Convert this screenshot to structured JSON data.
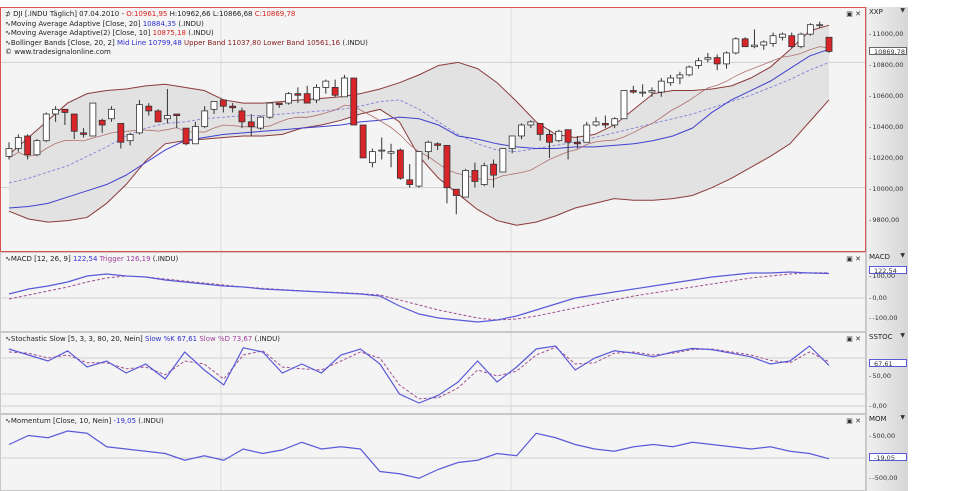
{
  "main": {
    "legend": {
      "symbol_line": {
        "prefix": "DJI [.INDU Täglich] 07.04.2010 - ",
        "open": "O:10961,95",
        "high": " H:10962,66",
        "low": " L:10866,68",
        "close": " C:10869,78"
      },
      "ma20": {
        "label": "Moving Average Adaptive [Close, 20] ",
        "value": "10884,35",
        "suffix": " (.INDU)"
      },
      "ma10": {
        "label": "Moving Average Adaptive(2) [Close, 10] ",
        "value": "10875,18",
        "suffix": " (.INDU)"
      },
      "bb": {
        "label": "Bollinger Bands [Close, 20, 2] ",
        "mid_label": "Mid Line 10799,48",
        "upper_label": " Upper Band 11037,80",
        "lower_label": " Lower Band 10561,16",
        "suffix": " (.INDU)"
      },
      "copyright": "© www.tradesignalonline.com"
    },
    "scale": {
      "title": "XXP",
      "ticks": [
        "11000,00",
        "10800,00",
        "10600,00",
        "10400,00",
        "10200,00",
        "10000,00",
        "9800,00"
      ],
      "last_price": "10869,78"
    }
  },
  "macd": {
    "legend": {
      "label": "MACD [12, 26, 9] ",
      "value": "122,54",
      "trigger": " Trigger 126,19",
      "suffix": " (.INDU)"
    },
    "scale": {
      "title": "MACD",
      "ticks": [
        "100,00",
        "0,00",
        "-100,00"
      ],
      "last_value": "122,54"
    }
  },
  "stoch": {
    "legend": {
      "label": "Stochastic Slow [5, 3, 3, 80, 20, Nein] ",
      "k": "Slow %K 67,61",
      "d": " Slow %D 73,67",
      "suffix": " (.INDU)"
    },
    "scale": {
      "title": "SSTOC",
      "ticks": [
        "50,00",
        "0,00"
      ],
      "last_value": "67,61"
    }
  },
  "mom": {
    "legend": {
      "label": "Momentum [Close, 10, Nein] ",
      "value": "-19,05",
      "suffix": " (.INDU)"
    },
    "scale": {
      "title": "MOM",
      "ticks": [
        "500,00",
        "-500,00"
      ],
      "last_value": "-19,05"
    }
  },
  "colors": {
    "up": "#ffffff",
    "down": "#d9252a",
    "band": "#8b3a3a",
    "ma20": "#4040d0",
    "ma10": "#8080e0",
    "macd": "#5a5ad8",
    "trigger": "#a05090",
    "frame_active": "#d9534f"
  },
  "chart_data": [
    {
      "type": "candlestick",
      "title": "DJI [.INDU Täglich] 07.04.2010",
      "ylabel": "XXP",
      "ylim": [
        9750,
        11080
      ],
      "yticks": [
        9800,
        10000,
        10200,
        10400,
        10600,
        10800,
        11000
      ],
      "ohlc": [
        [
          10200,
          10290,
          10180,
          10250
        ],
        [
          10250,
          10340,
          10230,
          10320
        ],
        [
          10330,
          10340,
          10180,
          10210
        ],
        [
          10210,
          10310,
          10200,
          10300
        ],
        [
          10300,
          10480,
          10290,
          10470
        ],
        [
          10470,
          10520,
          10420,
          10500
        ],
        [
          10500,
          10500,
          10400,
          10480
        ],
        [
          10470,
          10470,
          10310,
          10360
        ],
        [
          10350,
          10380,
          10320,
          10340
        ],
        [
          10330,
          10500,
          10330,
          10540
        ],
        [
          10430,
          10440,
          10350,
          10400
        ],
        [
          10440,
          10520,
          10420,
          10500
        ],
        [
          10410,
          10410,
          10250,
          10290
        ],
        [
          10300,
          10350,
          10270,
          10340
        ],
        [
          10350,
          10560,
          10340,
          10530
        ],
        [
          10520,
          10540,
          10460,
          10490
        ],
        [
          10490,
          10500,
          10430,
          10420
        ],
        [
          10440,
          10630,
          10410,
          10460
        ],
        [
          10470,
          10470,
          10380,
          10460
        ],
        [
          10380,
          10380,
          10270,
          10280
        ],
        [
          10280,
          10420,
          10280,
          10390
        ],
        [
          10390,
          10520,
          10380,
          10490
        ],
        [
          10500,
          10540,
          10470,
          10550
        ],
        [
          10560,
          10560,
          10480,
          10520
        ],
        [
          10520,
          10540,
          10480,
          10510
        ],
        [
          10490,
          10510,
          10380,
          10420
        ],
        [
          10420,
          10470,
          10330,
          10390
        ],
        [
          10380,
          10460,
          10370,
          10450
        ],
        [
          10450,
          10530,
          10440,
          10540
        ],
        [
          10540,
          10540,
          10510,
          10530
        ],
        [
          10540,
          10610,
          10530,
          10600
        ],
        [
          10600,
          10640,
          10540,
          10590
        ],
        [
          10600,
          10650,
          10570,
          10540
        ],
        [
          10560,
          10660,
          10540,
          10640
        ],
        [
          10640,
          10690,
          10600,
          10680
        ],
        [
          10640,
          10690,
          10580,
          10590
        ],
        [
          10580,
          10720,
          10580,
          10700
        ],
        [
          10700,
          10700,
          10420,
          10400
        ],
        [
          10400,
          10400,
          10200,
          10190
        ],
        [
          10160,
          10250,
          10130,
          10230
        ],
        [
          10240,
          10320,
          10180,
          10240
        ],
        [
          10220,
          10280,
          10130,
          10230
        ],
        [
          10240,
          10250,
          10050,
          10060
        ],
        [
          10050,
          10150,
          10000,
          10020
        ],
        [
          10010,
          10230,
          10000,
          10230
        ],
        [
          10230,
          10300,
          10180,
          10290
        ],
        [
          10280,
          10290,
          10240,
          10270
        ],
        [
          10270,
          10270,
          9900,
          10000
        ],
        [
          9990,
          9990,
          9830,
          9950
        ],
        [
          9940,
          10120,
          9950,
          10110
        ],
        [
          10110,
          10160,
          10000,
          10040
        ],
        [
          10020,
          10160,
          10010,
          10140
        ],
        [
          10150,
          10180,
          10000,
          10080
        ],
        [
          10100,
          10250,
          10100,
          10250
        ],
        [
          10250,
          10320,
          10220,
          10330
        ],
        [
          10330,
          10410,
          10310,
          10400
        ],
        [
          10400,
          10430,
          10380,
          10420
        ],
        [
          10410,
          10410,
          10300,
          10340
        ],
        [
          10340,
          10370,
          10190,
          10290
        ],
        [
          10300,
          10370,
          10290,
          10360
        ],
        [
          10370,
          10370,
          10180,
          10290
        ],
        [
          10290,
          10330,
          10250,
          10280
        ],
        [
          10290,
          10420,
          10290,
          10400
        ],
        [
          10400,
          10450,
          10390,
          10420
        ],
        [
          10410,
          10460,
          10380,
          10400
        ],
        [
          10400,
          10450,
          10380,
          10440
        ],
        [
          10440,
          10620,
          10440,
          10620
        ],
        [
          10620,
          10650,
          10600,
          10610
        ],
        [
          10610,
          10660,
          10580,
          10610
        ],
        [
          10610,
          10640,
          10580,
          10620
        ],
        [
          10610,
          10700,
          10580,
          10680
        ],
        [
          10670,
          10720,
          10650,
          10700
        ],
        [
          10700,
          10740,
          10660,
          10720
        ],
        [
          10720,
          10780,
          10710,
          10770
        ],
        [
          10780,
          10830,
          10760,
          10810
        ],
        [
          10820,
          10860,
          10800,
          10830
        ],
        [
          10830,
          10850,
          10750,
          10790
        ],
        [
          10790,
          10870,
          10760,
          10860
        ],
        [
          10860,
          10960,
          10850,
          10950
        ],
        [
          10950,
          10960,
          10900,
          10900
        ],
        [
          10900,
          11010,
          10890,
          10910
        ],
        [
          10910,
          10940,
          10880,
          10930
        ],
        [
          10920,
          10990,
          10900,
          10970
        ],
        [
          10960,
          10990,
          10940,
          10980
        ],
        [
          10970,
          10990,
          10890,
          10900
        ],
        [
          10900,
          10990,
          10890,
          10980
        ],
        [
          10980,
          11050,
          10970,
          11040
        ],
        [
          11040,
          11060,
          11020,
          11040
        ],
        [
          10960,
          10960,
          10860,
          10870
        ]
      ],
      "series": [
        {
          "name": "Bollinger Upper",
          "values": [
            10210,
            10320,
            10430,
            10540,
            10600,
            10620,
            10630,
            10650,
            10660,
            10640,
            10620,
            10560,
            10540,
            10540,
            10550,
            10560,
            10570,
            10580,
            10600,
            10630,
            10670,
            10720,
            10780,
            10800,
            10760,
            10670,
            10550,
            10420,
            10340,
            10320,
            10340,
            10400,
            10500,
            10600,
            10620,
            10620,
            10630,
            10650,
            10700,
            10770,
            10880,
            11000,
            11037
          ]
        },
        {
          "name": "Bollinger Lower",
          "values": [
            9850,
            9800,
            9780,
            9790,
            9810,
            9900,
            10020,
            10170,
            10280,
            10300,
            10310,
            10320,
            10330,
            10330,
            10340,
            10380,
            10400,
            10430,
            10470,
            10500,
            10420,
            10200,
            10060,
            9960,
            9860,
            9790,
            9760,
            9780,
            9820,
            9870,
            9900,
            9930,
            9920,
            9920,
            9930,
            9950,
            10000,
            10060,
            10130,
            10200,
            10280,
            10420,
            10561
          ]
        },
        {
          "name": "Bollinger Mid",
          "values": [
            10030,
            10060,
            10100,
            10140,
            10200,
            10260,
            10330,
            10380,
            10410,
            10420,
            10440,
            10450,
            10460,
            10460,
            10470,
            10480,
            10490,
            10500,
            10520,
            10550,
            10560,
            10500,
            10420,
            10340,
            10280,
            10240,
            10230,
            10250,
            10270,
            10290,
            10320,
            10350,
            10380,
            10410,
            10440,
            10470,
            10510,
            10550,
            10590,
            10640,
            10690,
            10750,
            10799
          ]
        },
        {
          "name": "MA Adaptive 20",
          "values": [
            9870,
            9880,
            9900,
            9940,
            9980,
            10020,
            10080,
            10160,
            10240,
            10300,
            10320,
            10340,
            10350,
            10360,
            10370,
            10380,
            10390,
            10400,
            10420,
            10430,
            10450,
            10440,
            10400,
            10330,
            10310,
            10280,
            10260,
            10250,
            10250,
            10260,
            10260,
            10270,
            10280,
            10300,
            10330,
            10380,
            10480,
            10560,
            10620,
            10680,
            10760,
            10840,
            10884
          ]
        }
      ]
    },
    {
      "type": "line",
      "title": "MACD [12, 26, 9]",
      "ylim": [
        -140,
        170
      ],
      "yticks": [
        100,
        0,
        -100
      ],
      "series": [
        {
          "name": "MACD",
          "values": [
            20,
            45,
            60,
            80,
            110,
            120,
            110,
            105,
            90,
            80,
            70,
            60,
            55,
            45,
            40,
            35,
            30,
            25,
            20,
            10,
            -40,
            -80,
            -100,
            -110,
            -120,
            -110,
            -90,
            -60,
            -30,
            0,
            15,
            30,
            45,
            60,
            75,
            90,
            105,
            115,
            125,
            125,
            130,
            125,
            122.54
          ]
        },
        {
          "name": "Trigger",
          "values": [
            -5,
            15,
            35,
            55,
            80,
            100,
            110,
            105,
            95,
            85,
            75,
            65,
            55,
            48,
            42,
            36,
            30,
            27,
            22,
            15,
            -10,
            -35,
            -60,
            -80,
            -100,
            -110,
            -105,
            -90,
            -70,
            -50,
            -30,
            -10,
            10,
            25,
            40,
            55,
            70,
            85,
            100,
            110,
            120,
            126,
            126.19
          ]
        }
      ]
    },
    {
      "type": "line",
      "title": "Stochastic Slow [5, 3, 3, 80, 20, Nein]",
      "ylim": [
        -10,
        110
      ],
      "yticks": [
        50,
        0
      ],
      "series": [
        {
          "name": "Slow %K",
          "values": [
            95,
            85,
            75,
            92,
            65,
            75,
            55,
            70,
            45,
            90,
            60,
            35,
            97,
            90,
            55,
            70,
            55,
            85,
            95,
            70,
            20,
            5,
            18,
            40,
            75,
            40,
            65,
            95,
            100,
            60,
            80,
            92,
            88,
            82,
            90,
            96,
            94,
            88,
            82,
            70,
            75,
            100,
            67.61
          ]
        },
        {
          "name": "Slow %D",
          "values": [
            90,
            88,
            80,
            85,
            72,
            72,
            62,
            65,
            52,
            75,
            70,
            45,
            85,
            92,
            65,
            62,
            60,
            75,
            90,
            80,
            35,
            12,
            14,
            30,
            60,
            50,
            58,
            85,
            98,
            70,
            72,
            88,
            90,
            85,
            88,
            94,
            95,
            90,
            85,
            76,
            72,
            90,
            73.67
          ]
        }
      ]
    },
    {
      "type": "line",
      "title": "Momentum [Close, 10, Nein]",
      "ylim": [
        -650,
        650
      ],
      "yticks": [
        500,
        -500
      ],
      "series": [
        {
          "name": "Momentum",
          "values": [
            300,
            500,
            450,
            600,
            550,
            250,
            200,
            150,
            100,
            -50,
            50,
            -50,
            200,
            100,
            180,
            350,
            200,
            250,
            200,
            -300,
            -350,
            -450,
            -250,
            -100,
            -50,
            100,
            50,
            550,
            450,
            300,
            200,
            150,
            250,
            300,
            250,
            350,
            300,
            250,
            200,
            250,
            150,
            100,
            -19.05
          ]
        }
      ]
    }
  ]
}
